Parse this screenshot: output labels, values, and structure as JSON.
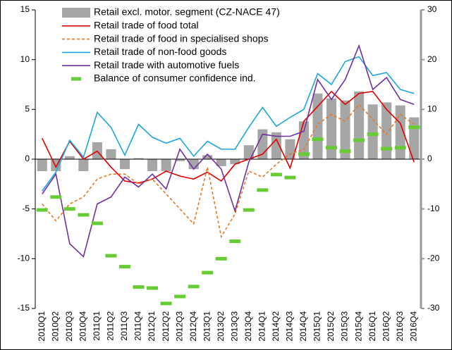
{
  "chart_data": {
    "type": "combo",
    "categories": [
      "2010Q1",
      "2010Q2",
      "2010Q3",
      "2010Q4",
      "2011Q1",
      "2011Q2",
      "2011Q3",
      "2011Q4",
      "2012Q1",
      "2012Q2",
      "2012Q3",
      "2012Q4",
      "2013Q1",
      "2013Q2",
      "2013Q3",
      "2013Q4",
      "2014Q1",
      "2014Q2",
      "2014Q3",
      "2014Q4",
      "2015Q1",
      "2015Q2",
      "2015Q3",
      "2015Q4",
      "2016Q1",
      "2016Q2",
      "2016Q3",
      "2016Q4"
    ],
    "ylim": [
      -15,
      15
    ],
    "yticks": [
      -15,
      -10,
      -5,
      0,
      5,
      10,
      15
    ],
    "y2lim": [
      -30,
      30
    ],
    "y2ticks": [
      -30,
      -20,
      -10,
      0,
      10,
      20,
      30
    ],
    "series": [
      {
        "name": "Retail excl. motor. segment (CZ-NACE 47)",
        "type": "bar",
        "color": "#a6a6a6",
        "values": [
          -1.2,
          -1.2,
          0.3,
          -1.2,
          1.7,
          1.0,
          -1.0,
          0.1,
          -1.2,
          -1.2,
          -0.2,
          -1.0,
          0.4,
          -0.7,
          -0.5,
          1.4,
          3.0,
          2.7,
          2.0,
          3.8,
          6.6,
          6.1,
          5.9,
          6.8,
          5.5,
          5.7,
          5.4,
          4.2
        ]
      },
      {
        "name": "Retail trade of food total",
        "type": "line",
        "color": "#e00000",
        "line_style": "solid",
        "values": [
          2.1,
          -0.8,
          1.8,
          0.0,
          0.8,
          -0.8,
          -2.2,
          -2.4,
          -2.0,
          -1.2,
          -1.7,
          -2.0,
          -1.3,
          -2.2,
          -0.5,
          0.0,
          0.5,
          2.0,
          -0.9,
          3.8,
          5.3,
          6.8,
          5.5,
          6.6,
          6.8,
          5.0,
          3.6,
          -0.3
        ]
      },
      {
        "name": "Retail trade of food in specialised shops",
        "type": "line",
        "color": "#e87722",
        "line_style": "dashed",
        "values": [
          -4.5,
          -6.2,
          -4.5,
          -3.8,
          -2.0,
          -1.5,
          -1.5,
          -2.5,
          -2.0,
          -3.5,
          -5.0,
          -6.5,
          -0.8,
          -7.8,
          -5.5,
          -1.2,
          -1.8,
          -0.5,
          0.5,
          1.0,
          3.5,
          4.5,
          3.8,
          5.5,
          4.0,
          2.5,
          4.5,
          3.5
        ]
      },
      {
        "name": "Retail trade of non-food goods",
        "type": "line",
        "color": "#1aa7e0",
        "line_style": "solid",
        "values": [
          -3.2,
          -1.3,
          1.9,
          0.2,
          4.7,
          3.2,
          0.4,
          3.5,
          2.2,
          1.6,
          2.1,
          0.3,
          1.8,
          1.0,
          1.0,
          3.2,
          5.2,
          3.3,
          4.2,
          5.0,
          8.6,
          7.5,
          9.8,
          10.3,
          8.4,
          8.7,
          7.0,
          6.6
        ]
      },
      {
        "name": "Retail trade with automotive fuels",
        "type": "line",
        "color": "#7030a0",
        "line_style": "solid",
        "values": [
          -3.5,
          -1.5,
          -8.5,
          -9.8,
          -4.5,
          -3.8,
          -1.8,
          -2.8,
          -1.5,
          -3.0,
          1.0,
          -1.0,
          0.5,
          -1.0,
          -5.2,
          -0.3,
          2.5,
          2.3,
          2.3,
          2.8,
          8.0,
          6.0,
          8.0,
          11.4,
          7.0,
          8.2,
          6.0,
          5.5
        ]
      },
      {
        "name": "Balance of consumer confidence ind.",
        "type": "dash",
        "axis": "y2",
        "color": "#66cc33",
        "values": [
          -10.2,
          -7.6,
          -10.0,
          -11.2,
          -12.9,
          -19.4,
          -21.6,
          -25.7,
          -25.9,
          -29.0,
          -27.6,
          -25.6,
          -22.8,
          -20.0,
          -16.5,
          -10.2,
          -6.2,
          -3.1,
          -3.7,
          1.0,
          4.0,
          2.3,
          1.6,
          3.8,
          5.0,
          2.1,
          2.3,
          6.4
        ]
      }
    ]
  }
}
